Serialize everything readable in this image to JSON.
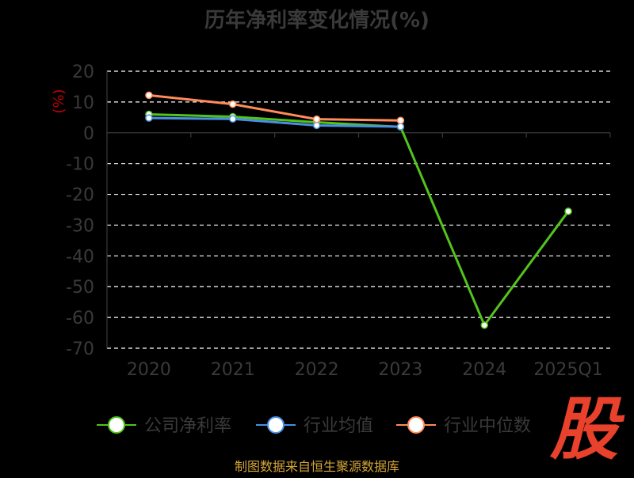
{
  "title": "历年净利率变化情况(%)",
  "source": "制图数据来自恒生聚源数据库",
  "logo_char": "股",
  "chart_data": {
    "type": "line",
    "ylabel": "(%)",
    "ylim": [
      -70,
      20
    ],
    "yticks": [
      20,
      10,
      0,
      -10,
      -20,
      -30,
      -40,
      -50,
      -60,
      -70
    ],
    "categories": [
      "2020",
      "2021",
      "2022",
      "2023",
      "2024",
      "2025Q1"
    ],
    "series": [
      {
        "name": "公司净利率",
        "color": "#52c41a",
        "values": [
          6.0,
          5.2,
          3.4,
          1.9,
          -62.5,
          -25.5
        ]
      },
      {
        "name": "行业均值",
        "color": "#4a90e2",
        "values": [
          4.8,
          4.5,
          2.4,
          2.0,
          null,
          null
        ]
      },
      {
        "name": "行业中位数",
        "color": "#ff8c5a",
        "values": [
          12.2,
          9.3,
          4.4,
          4.0,
          null,
          null
        ]
      }
    ]
  }
}
